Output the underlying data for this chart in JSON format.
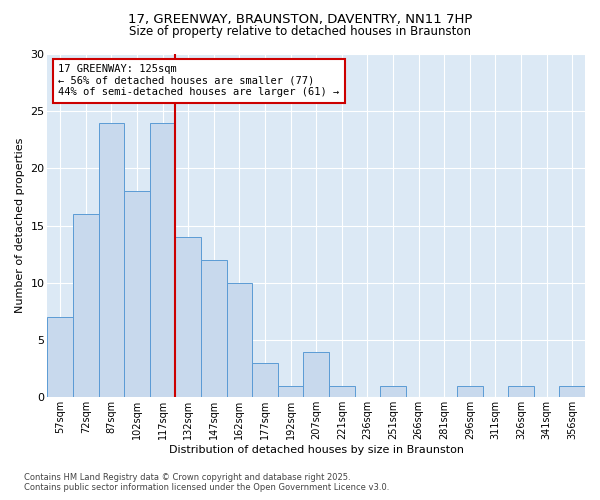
{
  "title_line1": "17, GREENWAY, BRAUNSTON, DAVENTRY, NN11 7HP",
  "title_line2": "Size of property relative to detached houses in Braunston",
  "xlabel": "Distribution of detached houses by size in Braunston",
  "ylabel": "Number of detached properties",
  "categories": [
    "57sqm",
    "72sqm",
    "87sqm",
    "102sqm",
    "117sqm",
    "132sqm",
    "147sqm",
    "162sqm",
    "177sqm",
    "192sqm",
    "207sqm",
    "221sqm",
    "236sqm",
    "251sqm",
    "266sqm",
    "281sqm",
    "296sqm",
    "311sqm",
    "326sqm",
    "341sqm",
    "356sqm"
  ],
  "values": [
    7,
    16,
    24,
    18,
    24,
    14,
    12,
    10,
    3,
    1,
    4,
    1,
    0,
    1,
    0,
    0,
    1,
    0,
    1,
    0,
    1
  ],
  "bar_color": "#c8d9ed",
  "bar_edge_color": "#5b9bd5",
  "reference_line_idx": 4,
  "reference_line_color": "#cc0000",
  "annotation_text": "17 GREENWAY: 125sqm\n← 56% of detached houses are smaller (77)\n44% of semi-detached houses are larger (61) →",
  "annotation_box_color": "#ffffff",
  "annotation_box_edge_color": "#cc0000",
  "ylim": [
    0,
    30
  ],
  "yticks": [
    0,
    5,
    10,
    15,
    20,
    25,
    30
  ],
  "background_color": "#dce9f5",
  "grid_color": "#ffffff",
  "footer_line1": "Contains HM Land Registry data © Crown copyright and database right 2025.",
  "footer_line2": "Contains public sector information licensed under the Open Government Licence v3.0."
}
